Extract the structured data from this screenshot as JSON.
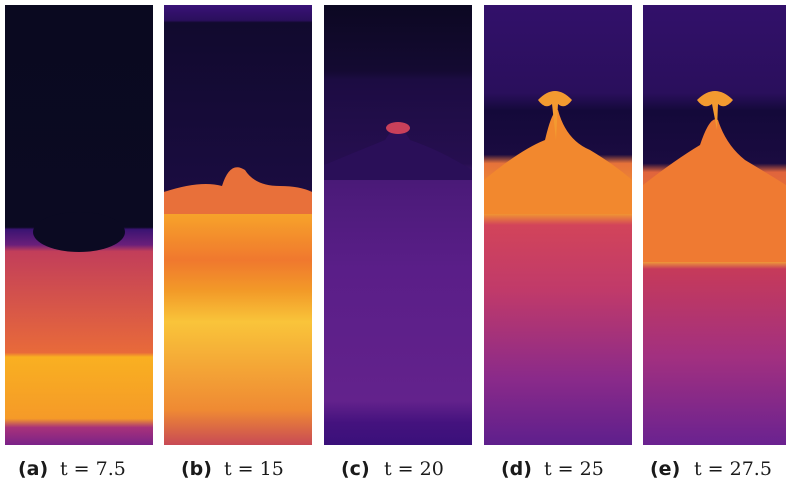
{
  "figure": {
    "panels": [
      {
        "label": "(a)",
        "caption": "t = 7.5"
      },
      {
        "label": "(b)",
        "caption": "t = 15"
      },
      {
        "label": "(c)",
        "caption": "t = 20"
      },
      {
        "label": "(d)",
        "caption": "t = 25"
      },
      {
        "label": "(e)",
        "caption": "t = 27.5"
      }
    ]
  }
}
